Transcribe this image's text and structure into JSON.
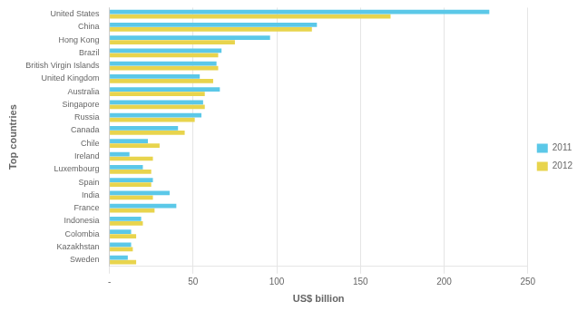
{
  "chart_data": {
    "type": "bar",
    "orientation": "horizontal",
    "categories": [
      "United States",
      "China",
      "Hong Kong",
      "Brazil",
      "British Virgin Islands",
      "United Kingdom",
      "Australia",
      "Singapore",
      "Russia",
      "Canada",
      "Chile",
      "Ireland",
      "Luxembourg",
      "Spain",
      "India",
      "France",
      "Indonesia",
      "Colombia",
      "Kazakhstan",
      "Sweden"
    ],
    "series": [
      {
        "name": "2011",
        "color": "#5bc8e8",
        "values": [
          227,
          124,
          96,
          67,
          64,
          54,
          66,
          56,
          55,
          41,
          23,
          12,
          20,
          26,
          36,
          40,
          19,
          13,
          13,
          11
        ]
      },
      {
        "name": "2012",
        "color": "#e8d44d",
        "values": [
          168,
          121,
          75,
          65,
          65,
          62,
          57,
          57,
          51,
          45,
          30,
          26,
          25,
          25,
          26,
          27,
          20,
          16,
          14,
          16
        ]
      }
    ],
    "xlabel": "US$ billion",
    "ylabel": "Top countries",
    "xlim": [
      0,
      250
    ],
    "xticks": [
      {
        "value": 0,
        "label": "-"
      },
      50,
      100,
      150,
      200,
      250
    ],
    "grid": true,
    "legend": "right"
  }
}
